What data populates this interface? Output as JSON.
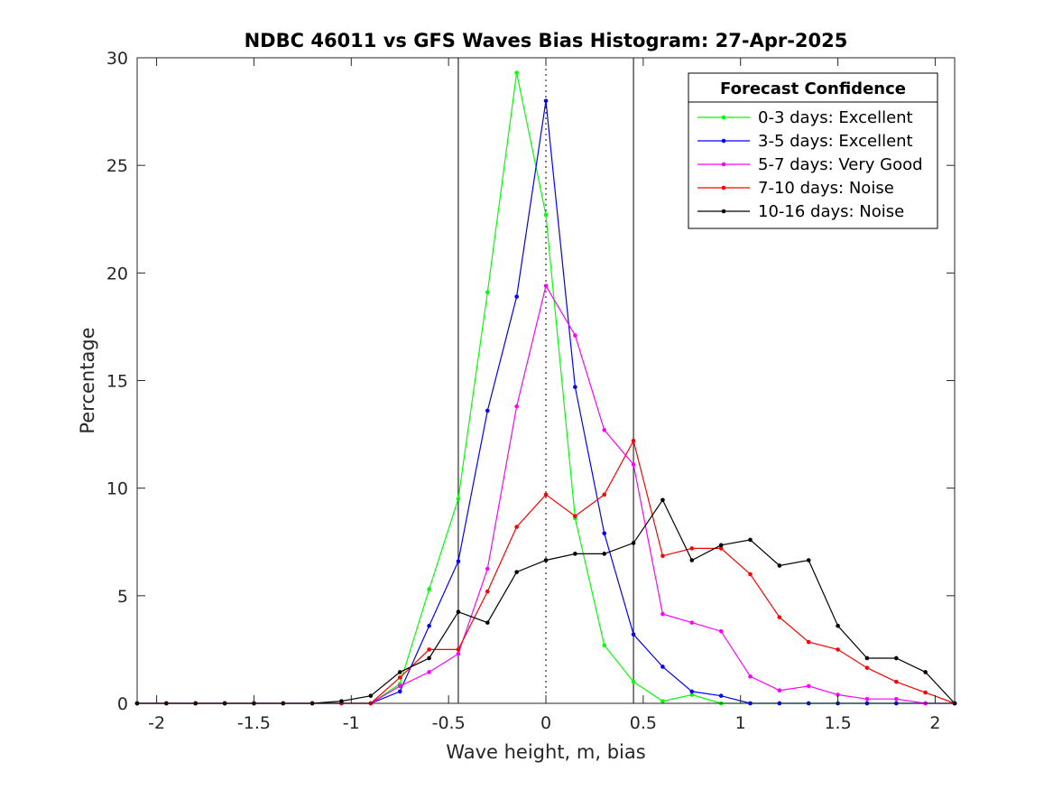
{
  "chart_data": {
    "type": "line",
    "title": "NDBC 46011 vs GFS Waves Bias Histogram: 27-Apr-2025",
    "xlabel": "Wave height, m, bias",
    "ylabel": "Percentage",
    "xlim": [
      -2.1,
      2.1
    ],
    "ylim": [
      0,
      30
    ],
    "xticks": [
      -2,
      -1.5,
      -1,
      -0.5,
      0,
      0.5,
      1,
      1.5,
      2
    ],
    "xtick_labels": [
      "-2",
      "-1.5",
      "-1",
      "-0.5",
      "0",
      "0.5",
      "1",
      "1.5",
      "2"
    ],
    "yticks": [
      0,
      5,
      10,
      15,
      20,
      25,
      30
    ],
    "ytick_labels": [
      "0",
      "5",
      "10",
      "15",
      "20",
      "25",
      "30"
    ],
    "grid": false,
    "vertical_reference_lines": [
      {
        "x": -0.45,
        "style": "solid"
      },
      {
        "x": 0,
        "style": "dotted"
      },
      {
        "x": 0.45,
        "style": "solid"
      }
    ],
    "legend": {
      "title": "Forecast Confidence",
      "position": "top-right"
    },
    "x": [
      -2.1,
      -1.95,
      -1.8,
      -1.65,
      -1.5,
      -1.35,
      -1.2,
      -1.05,
      -0.9,
      -0.75,
      -0.6,
      -0.45,
      -0.3,
      -0.15,
      0,
      0.15,
      0.3,
      0.45,
      0.6,
      0.75,
      0.9,
      1.05,
      1.2,
      1.35,
      1.5,
      1.65,
      1.8,
      1.95,
      2.1
    ],
    "series": [
      {
        "name": "0-3 days: Excellent",
        "color": "#00ff00",
        "values": [
          0,
          0,
          0,
          0,
          0,
          0,
          0,
          0,
          0,
          0.9,
          5.3,
          9.5,
          19.1,
          29.3,
          22.7,
          8.6,
          2.7,
          1.0,
          0.1,
          0.4,
          0,
          0,
          0,
          0,
          0,
          0,
          0,
          0,
          0
        ]
      },
      {
        "name": "3-5 days: Excellent",
        "color": "#0000ff",
        "values": [
          0,
          0,
          0,
          0,
          0,
          0,
          0,
          0,
          0,
          0.55,
          3.6,
          6.6,
          13.6,
          18.9,
          28.0,
          14.7,
          7.9,
          3.2,
          1.7,
          0.55,
          0.35,
          0,
          0,
          0,
          0,
          0,
          0,
          0,
          0
        ]
      },
      {
        "name": "5-7 days: Very Good",
        "color": "#ff00ff",
        "values": [
          0,
          0,
          0,
          0,
          0,
          0,
          0,
          0,
          0,
          0.8,
          1.45,
          2.3,
          6.25,
          13.8,
          19.4,
          17.1,
          12.7,
          11.1,
          4.15,
          3.75,
          3.35,
          1.25,
          0.6,
          0.8,
          0.4,
          0.2,
          0.2,
          0,
          0
        ]
      },
      {
        "name": "7-10 days: Noise",
        "color": "#ff0000",
        "values": [
          0,
          0,
          0,
          0,
          0,
          0,
          0,
          0,
          0,
          1.2,
          2.5,
          2.5,
          5.2,
          8.2,
          9.7,
          8.7,
          9.7,
          12.2,
          6.85,
          7.2,
          7.2,
          6.0,
          4.0,
          2.85,
          2.5,
          1.65,
          1.0,
          0.5,
          0
        ]
      },
      {
        "name": "10-16 days: Noise",
        "color": "#000000",
        "values": [
          0,
          0,
          0,
          0,
          0,
          0,
          0,
          0.1,
          0.35,
          1.45,
          2.1,
          4.25,
          3.75,
          6.1,
          6.65,
          6.95,
          6.95,
          7.45,
          9.45,
          6.65,
          7.35,
          7.6,
          6.4,
          6.65,
          3.6,
          2.1,
          2.1,
          1.45,
          0
        ]
      }
    ]
  }
}
